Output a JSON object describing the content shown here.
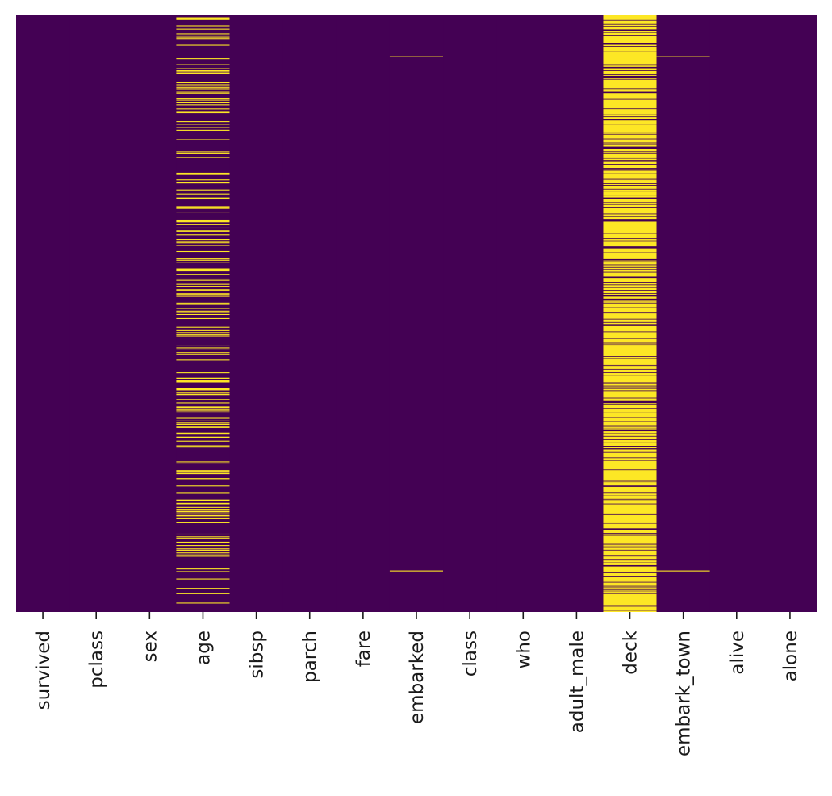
{
  "chart_data": {
    "type": "heatmap",
    "title": "",
    "xlabel": "",
    "ylabel": "",
    "columns": [
      "survived",
      "pclass",
      "sex",
      "age",
      "sibsp",
      "parch",
      "fare",
      "embarked",
      "class",
      "who",
      "adult_male",
      "deck",
      "embark_town",
      "alive",
      "alone"
    ],
    "n_rows": 891,
    "y_tick_labels": false,
    "colorbar": false,
    "colors": {
      "false": "#440154",
      "true": "#fde725"
    },
    "missing": {
      "age": 177,
      "embarked": 2,
      "deck": 688,
      "embark_town": 2
    },
    "missing_rows": {
      "embarked": [
        61,
        829
      ],
      "embark_town": [
        61,
        829
      ]
    }
  }
}
